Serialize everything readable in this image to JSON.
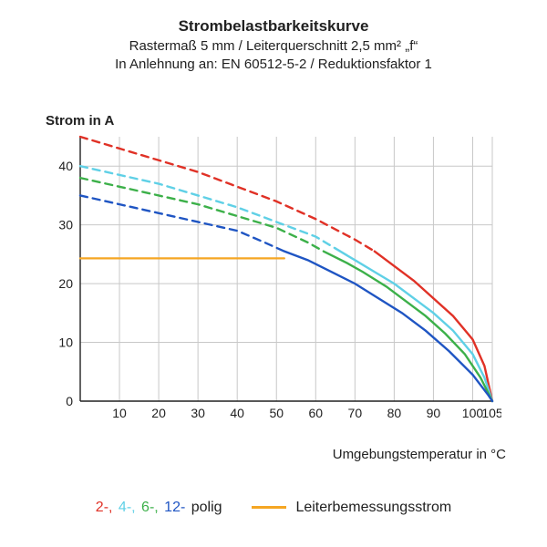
{
  "title": {
    "line1": "Strombelastbarkeitskurve",
    "line2": "Rastermaß 5 mm / Leiterquerschnitt 2,5 mm² „f“",
    "line3": "In Anlehnung an: EN 60512-5-2 / Reduktionsfaktor 1"
  },
  "chart": {
    "type": "line",
    "ylabel": "Strom in A",
    "xlabel": "Umgebungstemperatur in °C",
    "xlim": [
      0,
      105
    ],
    "ylim": [
      0,
      45
    ],
    "xtick_step": 10,
    "ytick_step": 10,
    "xtick_labels": [
      "10",
      "20",
      "30",
      "40",
      "50",
      "60",
      "70",
      "80",
      "90",
      "100",
      "105"
    ],
    "xtick_vals": [
      10,
      20,
      30,
      40,
      50,
      60,
      70,
      80,
      90,
      100,
      105
    ],
    "ytick_labels": [
      "0",
      "10",
      "20",
      "30",
      "40"
    ],
    "ytick_vals": [
      0,
      10,
      20,
      30,
      40
    ],
    "grid_color": "#c8c8c8",
    "axis_color": "#212121",
    "background_color": "#ffffff",
    "stroke_width_solid": 2.4,
    "stroke_width_dash": 2.4,
    "dash_pattern": "8 6",
    "series": [
      {
        "name": "2-polig",
        "color": "#e03126",
        "dashed": [
          [
            0,
            45
          ],
          [
            10,
            43
          ],
          [
            20,
            41
          ],
          [
            30,
            39
          ],
          [
            40,
            36.5
          ],
          [
            50,
            34
          ],
          [
            60,
            31
          ],
          [
            70,
            27.5
          ],
          [
            75,
            25.5
          ]
        ],
        "solid": [
          [
            75,
            25.5
          ],
          [
            80,
            23
          ],
          [
            85,
            20.5
          ],
          [
            90,
            17.5
          ],
          [
            95,
            14.5
          ],
          [
            100,
            10.5
          ],
          [
            103,
            6
          ],
          [
            105,
            0
          ]
        ]
      },
      {
        "name": "4-polig",
        "color": "#5fd0e6",
        "dashed": [
          [
            0,
            40
          ],
          [
            10,
            38.5
          ],
          [
            20,
            37
          ],
          [
            30,
            35
          ],
          [
            40,
            33
          ],
          [
            50,
            30.5
          ],
          [
            60,
            28
          ],
          [
            65,
            26
          ]
        ],
        "solid": [
          [
            65,
            26
          ],
          [
            70,
            24
          ],
          [
            75,
            22
          ],
          [
            80,
            20
          ],
          [
            85,
            17.5
          ],
          [
            90,
            15
          ],
          [
            95,
            12
          ],
          [
            100,
            8
          ],
          [
            103,
            4
          ],
          [
            105,
            0
          ]
        ]
      },
      {
        "name": "6-polig",
        "color": "#3cb049",
        "dashed": [
          [
            0,
            38
          ],
          [
            10,
            36.5
          ],
          [
            20,
            35
          ],
          [
            30,
            33.5
          ],
          [
            40,
            31.5
          ],
          [
            50,
            29.5
          ],
          [
            58,
            27
          ],
          [
            62,
            25.5
          ]
        ],
        "solid": [
          [
            62,
            25.5
          ],
          [
            68,
            23.5
          ],
          [
            72,
            22
          ],
          [
            78,
            19.5
          ],
          [
            83,
            17
          ],
          [
            88,
            14.5
          ],
          [
            93,
            11.5
          ],
          [
            98,
            8
          ],
          [
            102,
            4
          ],
          [
            105,
            0
          ]
        ]
      },
      {
        "name": "12-polig",
        "color": "#1f55c3",
        "dashed": [
          [
            0,
            35
          ],
          [
            10,
            33.5
          ],
          [
            20,
            32
          ],
          [
            30,
            30.5
          ],
          [
            40,
            29
          ],
          [
            47,
            27
          ],
          [
            52,
            25.5
          ]
        ],
        "solid": [
          [
            52,
            25.5
          ],
          [
            58,
            24
          ],
          [
            64,
            22
          ],
          [
            70,
            20
          ],
          [
            76,
            17.5
          ],
          [
            82,
            15
          ],
          [
            88,
            12
          ],
          [
            94,
            8.5
          ],
          [
            100,
            4.5
          ],
          [
            104,
            1
          ],
          [
            105,
            0
          ]
        ]
      }
    ],
    "rated_line": {
      "name": "Leiterbemessungsstrom",
      "color": "#f5a623",
      "y": 24.3,
      "x_from": 0,
      "x_to": 52
    }
  },
  "legend": {
    "items": [
      {
        "label": "2-",
        "color": "#e03126"
      },
      {
        "label": "4-",
        "color": "#5fd0e6"
      },
      {
        "label": "6-",
        "color": "#3cb049"
      },
      {
        "label": "12-",
        "color": "#1f55c3"
      }
    ],
    "suffix": " polig",
    "rated_label": "Leiterbemessungsstrom",
    "rated_color": "#f5a623",
    "text_color": "#212121"
  }
}
